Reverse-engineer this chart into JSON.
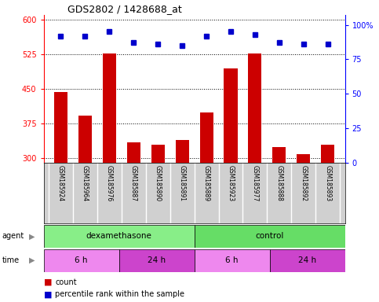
{
  "title": "GDS2802 / 1428688_at",
  "samples": [
    "GSM185924",
    "GSM185964",
    "GSM185976",
    "GSM185887",
    "GSM185890",
    "GSM185891",
    "GSM185889",
    "GSM185923",
    "GSM185977",
    "GSM185888",
    "GSM185892",
    "GSM185893"
  ],
  "counts": [
    443,
    393,
    527,
    335,
    330,
    340,
    400,
    495,
    527,
    325,
    310,
    330
  ],
  "percentile_ranks": [
    92,
    92,
    95,
    87,
    86,
    85,
    92,
    95,
    93,
    87,
    86,
    86
  ],
  "ylim_left": [
    290,
    610
  ],
  "ylim_right": [
    0,
    107
  ],
  "yticks_left": [
    300,
    375,
    450,
    525,
    600
  ],
  "yticks_right": [
    0,
    25,
    50,
    75,
    100
  ],
  "bar_color": "#cc0000",
  "dot_color": "#0000cc",
  "sample_bg": "#d0d0d0",
  "agent_groups": [
    {
      "label": "dexamethasone",
      "start": 0,
      "end": 6,
      "color": "#88ee88"
    },
    {
      "label": "control",
      "start": 6,
      "end": 12,
      "color": "#66dd66"
    }
  ],
  "time_groups": [
    {
      "label": "6 h",
      "start": 0,
      "end": 3,
      "color": "#ee88ee"
    },
    {
      "label": "24 h",
      "start": 3,
      "end": 6,
      "color": "#cc44cc"
    },
    {
      "label": "6 h",
      "start": 6,
      "end": 9,
      "color": "#ee88ee"
    },
    {
      "label": "24 h",
      "start": 9,
      "end": 12,
      "color": "#cc44cc"
    }
  ],
  "fig_width": 4.83,
  "fig_height": 3.84,
  "dpi": 100
}
